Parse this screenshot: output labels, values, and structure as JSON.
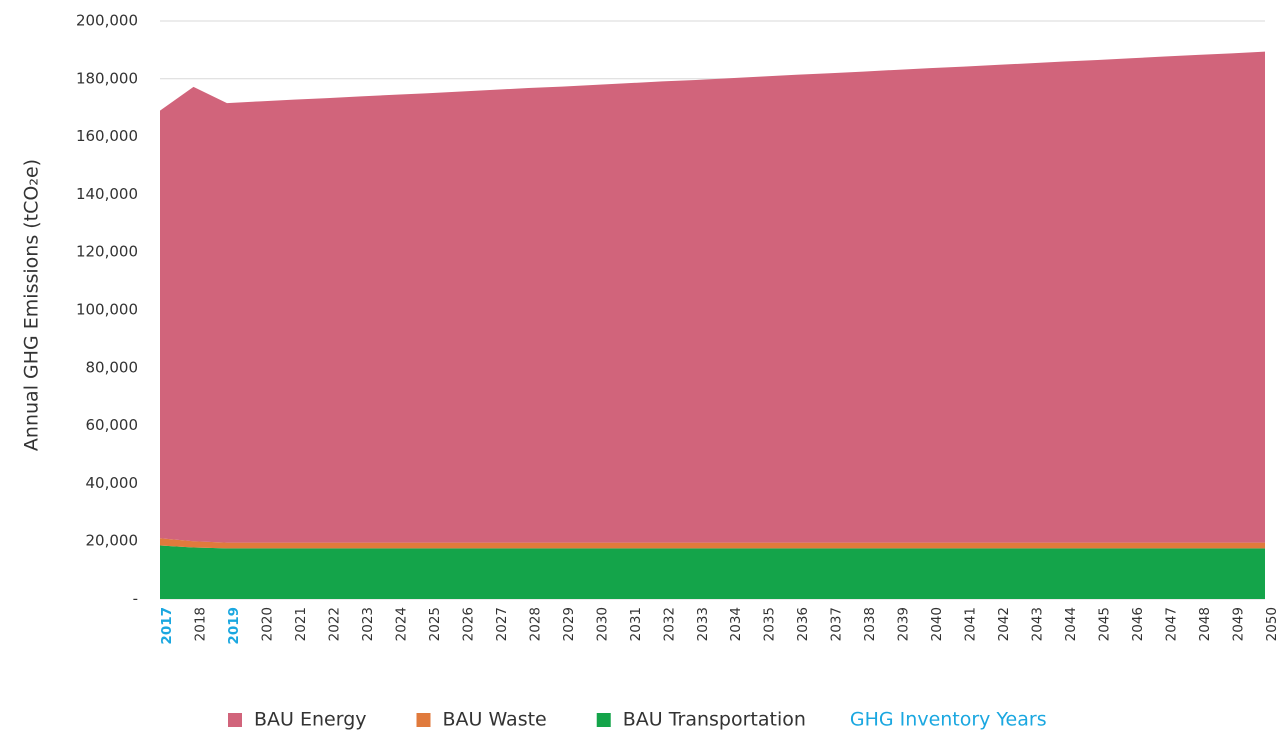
{
  "chart_data": {
    "type": "stacked_area",
    "y_label": "Annual GHG Emissions (tCO₂e)",
    "categories": [
      "2017",
      "2018",
      "2019",
      "2020",
      "2021",
      "2022",
      "2023",
      "2024",
      "2025",
      "2026",
      "2027",
      "2028",
      "2029",
      "2030",
      "2031",
      "2032",
      "2033",
      "2034",
      "2035",
      "2036",
      "2037",
      "2038",
      "2039",
      "2040",
      "2041",
      "2042",
      "2043",
      "2044",
      "2045",
      "2046",
      "2047",
      "2048",
      "2049",
      "2050"
    ],
    "series": [
      {
        "name": "BAU Energy",
        "color": "#d1647b",
        "values": [
          148000,
          157200,
          152100,
          152700,
          153300,
          153800,
          154400,
          155000,
          155500,
          156100,
          156700,
          157300,
          157800,
          158400,
          159000,
          159600,
          160100,
          160700,
          161300,
          161900,
          162400,
          163000,
          163600,
          164200,
          164700,
          165300,
          165900,
          166500,
          167000,
          167600,
          168200,
          168800,
          169300,
          169900
        ]
      },
      {
        "name": "BAU Waste",
        "color": "#e07a3c",
        "values": [
          2500,
          2200,
          2000,
          2000,
          2000,
          2000,
          2000,
          2000,
          2000,
          2000,
          2000,
          2000,
          2000,
          2000,
          2000,
          2000,
          2000,
          2000,
          2000,
          2000,
          2000,
          2000,
          2000,
          2000,
          2000,
          2000,
          2000,
          2000,
          2000,
          2000,
          2000,
          2000,
          2000,
          2000
        ]
      },
      {
        "name": "BAU Transportation",
        "color": "#14a44a",
        "values": [
          18500,
          17800,
          17500,
          17500,
          17500,
          17500,
          17500,
          17500,
          17500,
          17500,
          17500,
          17500,
          17500,
          17500,
          17500,
          17500,
          17500,
          17500,
          17500,
          17500,
          17500,
          17500,
          17500,
          17500,
          17500,
          17500,
          17500,
          17500,
          17500,
          17500,
          17500,
          17500,
          17500,
          17500
        ]
      }
    ],
    "inventory_years": {
      "name": "GHG Inventory Years",
      "color": "#1aa7e0",
      "categories": [
        "2017",
        "2019"
      ]
    },
    "ylim": [
      0,
      200000
    ],
    "yticks": [
      {
        "value": 0,
        "label": "-"
      },
      {
        "value": 20000,
        "label": "20,000"
      },
      {
        "value": 40000,
        "label": "40,000"
      },
      {
        "value": 60000,
        "label": "60,000"
      },
      {
        "value": 80000,
        "label": "80,000"
      },
      {
        "value": 100000,
        "label": "100,000"
      },
      {
        "value": 120000,
        "label": "120,000"
      },
      {
        "value": 140000,
        "label": "140,000"
      },
      {
        "value": 160000,
        "label": "160,000"
      },
      {
        "value": 180000,
        "label": "180,000"
      },
      {
        "value": 200000,
        "label": "200,000"
      }
    ],
    "grid": true
  }
}
